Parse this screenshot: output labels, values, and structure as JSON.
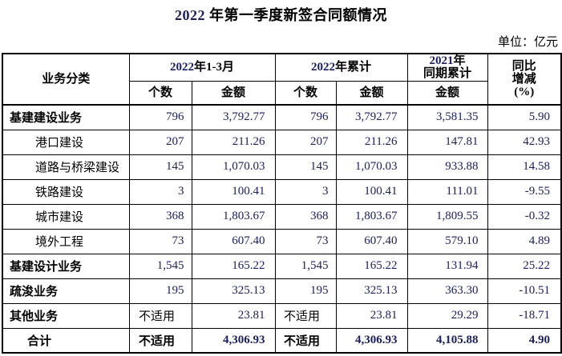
{
  "title": {
    "year_number": "2022",
    "text": " 年第一季度新签合同额情况"
  },
  "unit_label": "单位：亿元",
  "colors": {
    "number_navy": "#1c2060",
    "text_black": "#000000",
    "border": "#000000"
  },
  "table": {
    "na_text": "不适用",
    "header": {
      "business_category": "业务分类",
      "period_q1_num": "2022",
      "period_q1_rest": "年1-3月",
      "period_cum_num": "2022",
      "period_cum_rest": "年累计",
      "period_prev_num": "2021",
      "period_prev_rest": "年",
      "period_prev_line2": "同期累计",
      "yoy_line1": "同比",
      "yoy_line2": "增减",
      "yoy_line3": "(%)",
      "sub_count": "个数",
      "sub_amount": "金额"
    },
    "rows": [
      {
        "label": "基建建设业务",
        "label_style": "section",
        "values_bold": false,
        "cells": [
          "796",
          "3,792.77",
          "796",
          "3,792.77",
          "3,581.35",
          "5.90"
        ]
      },
      {
        "label": "港口建设",
        "label_style": "sub",
        "values_bold": false,
        "cells": [
          "207",
          "211.26",
          "207",
          "211.26",
          "147.81",
          "42.93"
        ]
      },
      {
        "label": "道路与桥梁建设",
        "label_style": "sub",
        "values_bold": false,
        "cells": [
          "145",
          "1,070.03",
          "145",
          "1,070.03",
          "933.88",
          "14.58"
        ]
      },
      {
        "label": "铁路建设",
        "label_style": "sub",
        "values_bold": false,
        "cells": [
          "3",
          "100.41",
          "3",
          "100.41",
          "111.01",
          "-9.55"
        ]
      },
      {
        "label": "城市建设",
        "label_style": "sub",
        "values_bold": false,
        "cells": [
          "368",
          "1,803.67",
          "368",
          "1,803.67",
          "1,809.55",
          "-0.32"
        ]
      },
      {
        "label": "境外工程",
        "label_style": "sub",
        "values_bold": false,
        "cells": [
          "73",
          "607.40",
          "73",
          "607.40",
          "579.10",
          "4.89"
        ]
      },
      {
        "label": "基建设计业务",
        "label_style": "section",
        "values_bold": false,
        "cells": [
          "1,545",
          "165.22",
          "1,545",
          "165.22",
          "131.94",
          "25.22"
        ]
      },
      {
        "label": "疏浚业务",
        "label_style": "section",
        "values_bold": false,
        "cells": [
          "195",
          "325.13",
          "195",
          "325.13",
          "363.30",
          "-10.51"
        ]
      },
      {
        "label": "其他业务",
        "label_style": "section",
        "values_bold": false,
        "cells": [
          "不适用",
          "23.81",
          "不适用",
          "23.81",
          "29.29",
          "-18.71"
        ]
      },
      {
        "label": "合计",
        "label_style": "total",
        "values_bold": true,
        "cells": [
          "不适用",
          "4,306.93",
          "不适用",
          "4,306.93",
          "4,105.88",
          "4.90"
        ]
      }
    ]
  }
}
